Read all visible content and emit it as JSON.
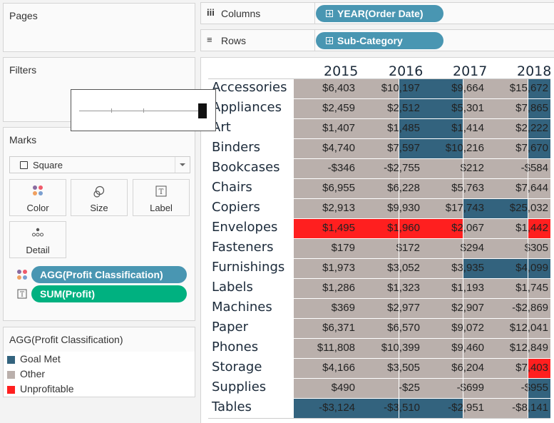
{
  "left_panel": {
    "pages": {
      "title": "Pages"
    },
    "filters": {
      "title": "Filters"
    },
    "marks": {
      "title": "Marks",
      "mark_type": "Square",
      "buttons": {
        "color": "Color",
        "size": "Size",
        "label": "Label",
        "detail": "Detail"
      },
      "pills": [
        {
          "label": "AGG(Profit Classification)",
          "type": "color",
          "color": "#4996b2"
        },
        {
          "label": "SUM(Profit)",
          "type": "text",
          "color": "#00b180"
        }
      ]
    },
    "legend": {
      "title": "AGG(Profit Classification)",
      "items": [
        {
          "label": "Goal Met",
          "color": "#33637e"
        },
        {
          "label": "Other",
          "color": "#bab0ac"
        },
        {
          "label": "Unprofitable",
          "color": "#ff1f1f"
        }
      ]
    }
  },
  "shelves": {
    "columns": {
      "label": "Columns",
      "icon": "iii",
      "pill": "YEAR(Order Date)"
    },
    "rows": {
      "label": "Rows",
      "icon": "≡",
      "pill": "Sub-Category"
    }
  },
  "colors": {
    "goal": "#33637e",
    "other": "#bab0ac",
    "unprof": "#ff1f1f"
  },
  "view": {
    "years": [
      "2015",
      "2016",
      "2017",
      "2018"
    ],
    "rows": [
      {
        "label": "Accessories",
        "values": [
          "$6,403",
          "$10,197",
          "$9,664",
          "$15,672"
        ],
        "panes": [
          "other",
          "goal",
          "other",
          "goal"
        ]
      },
      {
        "label": "Appliances",
        "values": [
          "$2,459",
          "$2,512",
          "$5,301",
          "$7,865"
        ],
        "panes": [
          "other",
          "goal",
          "other",
          "goal"
        ]
      },
      {
        "label": "Art",
        "values": [
          "$1,407",
          "$1,485",
          "$1,414",
          "$2,222"
        ],
        "panes": [
          "other",
          "goal",
          "other",
          "goal"
        ]
      },
      {
        "label": "Binders",
        "values": [
          "$4,740",
          "$7,597",
          "$10,216",
          "$7,670"
        ],
        "panes": [
          "other",
          "goal",
          "other",
          "goal"
        ]
      },
      {
        "label": "Bookcases",
        "values": [
          "-$346",
          "-$2,755",
          "$212",
          "-$584"
        ],
        "panes": [
          "other",
          "other",
          "other",
          "other"
        ]
      },
      {
        "label": "Chairs",
        "values": [
          "$6,955",
          "$6,228",
          "$5,763",
          "$7,644"
        ],
        "panes": [
          "other",
          "other",
          "other",
          "other"
        ]
      },
      {
        "label": "Copiers",
        "values": [
          "$2,913",
          "$9,930",
          "$17,743",
          "$25,032"
        ],
        "panes": [
          "other",
          "other",
          "goal",
          "other"
        ]
      },
      {
        "label": "Envelopes",
        "values": [
          "$1,495",
          "$1,960",
          "$2,067",
          "$1,442"
        ],
        "panes": [
          "unprof",
          "unprof",
          "other",
          "unprof"
        ]
      },
      {
        "label": "Fasteners",
        "values": [
          "$179",
          "$172",
          "$294",
          "$305"
        ],
        "panes": [
          "other",
          "other",
          "other",
          "other"
        ]
      },
      {
        "label": "Furnishings",
        "values": [
          "$1,973",
          "$3,052",
          "$3,935",
          "$4,099"
        ],
        "panes": [
          "other",
          "other",
          "goal",
          "goal"
        ]
      },
      {
        "label": "Labels",
        "values": [
          "$1,286",
          "$1,323",
          "$1,193",
          "$1,745"
        ],
        "panes": [
          "other",
          "other",
          "other",
          "other"
        ]
      },
      {
        "label": "Machines",
        "values": [
          "$369",
          "$2,977",
          "$2,907",
          "-$2,869"
        ],
        "panes": [
          "other",
          "other",
          "other",
          "other"
        ]
      },
      {
        "label": "Paper",
        "values": [
          "$6,371",
          "$6,570",
          "$9,072",
          "$12,041"
        ],
        "panes": [
          "other",
          "other",
          "other",
          "other"
        ]
      },
      {
        "label": "Phones",
        "values": [
          "$11,808",
          "$10,399",
          "$9,460",
          "$12,849"
        ],
        "panes": [
          "other",
          "other",
          "other",
          "other"
        ]
      },
      {
        "label": "Storage",
        "values": [
          "$4,166",
          "$3,505",
          "$6,204",
          "$7,403"
        ],
        "panes": [
          "other",
          "other",
          "other",
          "unprof"
        ]
      },
      {
        "label": "Supplies",
        "values": [
          "$490",
          "-$25",
          "-$699",
          "-$955"
        ],
        "panes": [
          "other",
          "other",
          "other",
          "goal"
        ]
      },
      {
        "label": "Tables",
        "values": [
          "-$3,124",
          "-$3,510",
          "-$2,951",
          "-$8,141"
        ],
        "panes": [
          "goal",
          "goal",
          "other",
          "goal"
        ]
      }
    ]
  }
}
